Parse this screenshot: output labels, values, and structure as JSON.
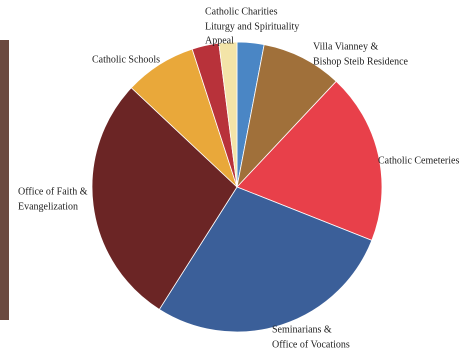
{
  "chart_data": {
    "type": "pie",
    "categories": [
      [
        "Catholic Charities"
      ],
      [
        "Villa Vianney &",
        "Bishop Steib Residence"
      ],
      [
        "Catholic Cemeteries"
      ],
      [
        "Seminarians &",
        "Office of Vocations"
      ],
      [
        "Office of Faith &",
        "Evangelization"
      ],
      [
        "Catholic Schools"
      ],
      [
        "Liturgy and Spirituality"
      ],
      [
        "Appeal"
      ]
    ],
    "values": [
      3,
      9,
      19,
      28,
      28,
      8,
      3,
      2
    ],
    "colors": [
      "#4a86c5",
      "#a0703a",
      "#e8404a",
      "#3b5f99",
      "#6b2525",
      "#e9a83a",
      "#b8323a",
      "#f3e4a8"
    ]
  }
}
